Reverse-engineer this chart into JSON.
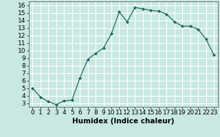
{
  "x": [
    0,
    1,
    2,
    3,
    4,
    5,
    6,
    7,
    8,
    9,
    10,
    11,
    12,
    13,
    14,
    15,
    16,
    17,
    18,
    19,
    20,
    21,
    22,
    23
  ],
  "y": [
    5.0,
    3.8,
    3.2,
    2.8,
    3.3,
    3.4,
    6.3,
    8.8,
    9.6,
    10.3,
    12.2,
    15.1,
    13.8,
    15.7,
    15.5,
    15.3,
    15.2,
    14.8,
    13.8,
    13.2,
    13.2,
    12.8,
    11.5,
    9.4
  ],
  "xlabel": "Humidex (Indice chaleur)",
  "xlim": [
    -0.5,
    23.5
  ],
  "ylim": [
    2.5,
    16.5
  ],
  "yticks": [
    3,
    4,
    5,
    6,
    7,
    8,
    9,
    10,
    11,
    12,
    13,
    14,
    15,
    16
  ],
  "xticks": [
    0,
    1,
    2,
    3,
    4,
    5,
    6,
    7,
    8,
    9,
    10,
    11,
    12,
    13,
    14,
    15,
    16,
    17,
    18,
    19,
    20,
    21,
    22,
    23
  ],
  "line_color": "#1a6b5a",
  "marker_color": "#1a6b5a",
  "bg_color": "#c8e8e0",
  "grid_color": "#ffffff",
  "xlabel_fontsize": 7.5,
  "tick_fontsize": 6.5
}
